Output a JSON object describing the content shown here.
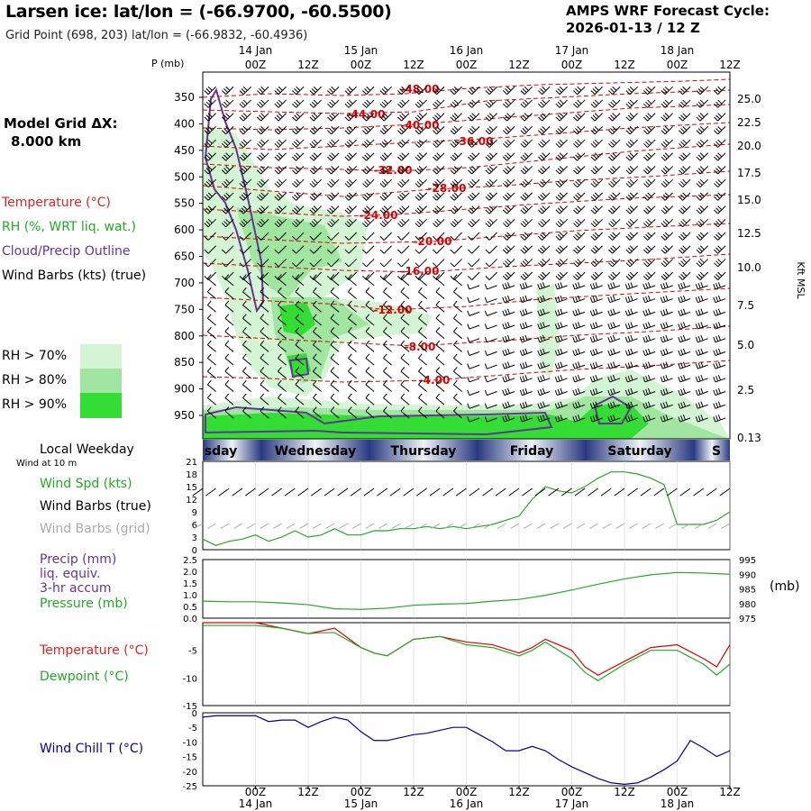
{
  "header": {
    "title": "Larsen ice:  lat/lon = (-66.9700, -60.5500)",
    "subtitle": "Grid Point (698, 203) lat/lon = (-66.9832, -60.4936)",
    "cycle_line1": "AMPS WRF Forecast Cycle:",
    "cycle_line2": "2026-01-13 / 12  Z"
  },
  "legend": {
    "grid_line1": "Model Grid ΔX:",
    "grid_line2": "8.000 km",
    "temperature": "Temperature (°C)",
    "rh": "RH (%, WRT liq. wat.)",
    "cloud": "Cloud/Precip Outline",
    "wind": "Wind Barbs (kts) (true)",
    "rh70": "RH > 70%",
    "rh80": "RH > 80%",
    "rh90": "RH > 90%",
    "rh70_color": "#d4f5d4",
    "rh80_color": "#a0e6a0",
    "rh90_color": "#33dd33"
  },
  "colors": {
    "temperature": "#dd0000",
    "rh": "#22aa22",
    "cloud": "#663399",
    "wind": "#000000",
    "gridbarbs": "#aaaaaa",
    "windchill": "#000099"
  },
  "time_axis": {
    "top_dates": [
      {
        "label": "14 Jan",
        "at": 12
      },
      {
        "label": "15 Jan",
        "at": 36
      },
      {
        "label": "16 Jan",
        "at": 60
      },
      {
        "label": "17 Jan",
        "at": 84
      },
      {
        "label": "18 Jan",
        "at": 108
      }
    ],
    "hour_ticks": [
      {
        "label": "00Z",
        "at": 12
      },
      {
        "label": "12Z",
        "at": 24
      },
      {
        "label": "00Z",
        "at": 36
      },
      {
        "label": "12Z",
        "at": 48
      },
      {
        "label": "00Z",
        "at": 60
      },
      {
        "label": "12Z",
        "at": 72
      },
      {
        "label": "00Z",
        "at": 84
      },
      {
        "label": "12Z",
        "at": 96
      },
      {
        "label": "00Z",
        "at": 108
      },
      {
        "label": "12Z",
        "at": 120
      }
    ],
    "range_hours": [
      0,
      120
    ]
  },
  "weekday_bar": {
    "label": "Local Weekday",
    "days": [
      "sday",
      "Wednesday",
      "Thursday",
      "Friday",
      "Saturday",
      "S"
    ]
  },
  "chart_data": [
    {
      "type": "heatmap",
      "name": "cross-section",
      "ylabel": "P (mb)",
      "y2label": "Kft MSL",
      "pressure_ticks": [
        350,
        400,
        450,
        500,
        550,
        600,
        650,
        700,
        750,
        800,
        850,
        900,
        950
      ],
      "kft_ticks": [
        "25.0",
        "22.5",
        "20.0",
        "17.5",
        "15.0",
        "12.5",
        "10.0",
        "7.5",
        "5.0",
        "2.5",
        "0.13"
      ],
      "temperature_labels": [
        "-48.00",
        "-44.00",
        "-40.00",
        "-36.00",
        "-32.00",
        "-28.00",
        "-24.00",
        "-20.00",
        "-16.00",
        "-12.00",
        "-8.00",
        "-4.00"
      ]
    },
    {
      "type": "line",
      "name": "surface wind",
      "label_wind_at": "Wind at 10 m",
      "label_spd": "Wind Spd (kts)",
      "label_barbs": "Wind Barbs (true)",
      "label_grid": "Wind Barbs (grid)",
      "yticks": [
        0,
        3,
        6,
        9,
        12,
        15,
        18,
        21
      ],
      "x": [
        0,
        3,
        6,
        9,
        12,
        15,
        18,
        21,
        24,
        27,
        30,
        33,
        36,
        39,
        42,
        45,
        48,
        51,
        54,
        57,
        60,
        63,
        66,
        69,
        72,
        75,
        78,
        81,
        84,
        87,
        90,
        93,
        96,
        99,
        102,
        105,
        108,
        111,
        114,
        117,
        120
      ],
      "speed": [
        2.5,
        1,
        2,
        2.5,
        3.5,
        2,
        3,
        4.5,
        3,
        3.5,
        5,
        3.5,
        3.5,
        4.5,
        4.5,
        5,
        5,
        5.5,
        5,
        5.5,
        5,
        5.5,
        6,
        7,
        8,
        12,
        15,
        14,
        13.5,
        15,
        17,
        18.5,
        18.5,
        18,
        17,
        15.5,
        6,
        6,
        6,
        7,
        9
      ]
    },
    {
      "type": "line",
      "name": "precip and pressure",
      "label_precip": "Precip (mm)",
      "label_liq": "liq. equiv.",
      "label_accum": "3-hr accum",
      "label_pressure": "Pressure (mb)",
      "y2unit": "(mb)",
      "precip_ticks": [
        "0.0",
        "0.5",
        "1.0",
        "1.5",
        "2.0",
        "2.5"
      ],
      "pressure_ticks": [
        975,
        980,
        985,
        990,
        995
      ],
      "x": [
        0,
        6,
        12,
        18,
        24,
        30,
        36,
        42,
        48,
        54,
        60,
        66,
        72,
        78,
        84,
        90,
        96,
        102,
        108,
        114,
        120
      ],
      "pressure": [
        980.8,
        980.6,
        980.6,
        980.2,
        979.6,
        978.2,
        978.0,
        978.4,
        979.4,
        979.8,
        980.0,
        980.8,
        981.4,
        982.8,
        984.6,
        986.6,
        988.4,
        989.8,
        990.6,
        990.4,
        990.0
      ]
    },
    {
      "type": "line",
      "name": "temperature and dewpoint",
      "label_t": "Temperature (°C)",
      "label_td": "Dewpoint (°C)",
      "yticks": [
        -15,
        -10,
        -5
      ],
      "x": [
        0,
        6,
        12,
        18,
        24,
        27,
        30,
        36,
        39,
        42,
        48,
        54,
        60,
        66,
        72,
        75,
        78,
        84,
        87,
        90,
        96,
        102,
        108,
        114,
        117,
        120
      ],
      "temperature": [
        0,
        0,
        0,
        -1,
        -2,
        -1.5,
        -1,
        -4.5,
        -5.5,
        -6,
        -3,
        -2.5,
        -3.5,
        -4,
        -5.5,
        -4.5,
        -3,
        -5,
        -8,
        -9.5,
        -7,
        -4.5,
        -4,
        -6.5,
        -8,
        -4
      ],
      "dewpoint": [
        -0.5,
        -0.5,
        -0.5,
        -1,
        -2,
        -1.8,
        -1.8,
        -4.5,
        -5.5,
        -6,
        -3,
        -2.5,
        -4,
        -4.5,
        -6,
        -5,
        -3.5,
        -6.5,
        -9,
        -10.5,
        -7.5,
        -5,
        -5,
        -7.5,
        -9.5,
        -7.5
      ]
    },
    {
      "type": "line",
      "name": "wind chill",
      "label": "Wind Chill T (°C)",
      "yticks": [
        0,
        -5,
        -10,
        -15,
        -20,
        -25
      ],
      "x": [
        0,
        3,
        6,
        9,
        12,
        15,
        18,
        21,
        24,
        27,
        30,
        33,
        36,
        39,
        42,
        45,
        48,
        51,
        54,
        57,
        60,
        63,
        66,
        69,
        72,
        75,
        78,
        81,
        84,
        87,
        90,
        93,
        96,
        99,
        102,
        105,
        108,
        111,
        114,
        117,
        120
      ],
      "windchill": [
        -1.5,
        -1,
        -1,
        -1,
        -1,
        -3,
        -2.5,
        -2.5,
        -5,
        -3,
        -1.5,
        -2.5,
        -6.5,
        -9.5,
        -9.5,
        -8.5,
        -7.5,
        -7,
        -6,
        -5,
        -5,
        -7.5,
        -10,
        -13,
        -13,
        -11.5,
        -13,
        -16,
        -18.5,
        -20.5,
        -22.5,
        -24,
        -24.5,
        -24,
        -22,
        -19.5,
        -16.5,
        -9.5,
        -12,
        -15,
        -13
      ]
    }
  ]
}
